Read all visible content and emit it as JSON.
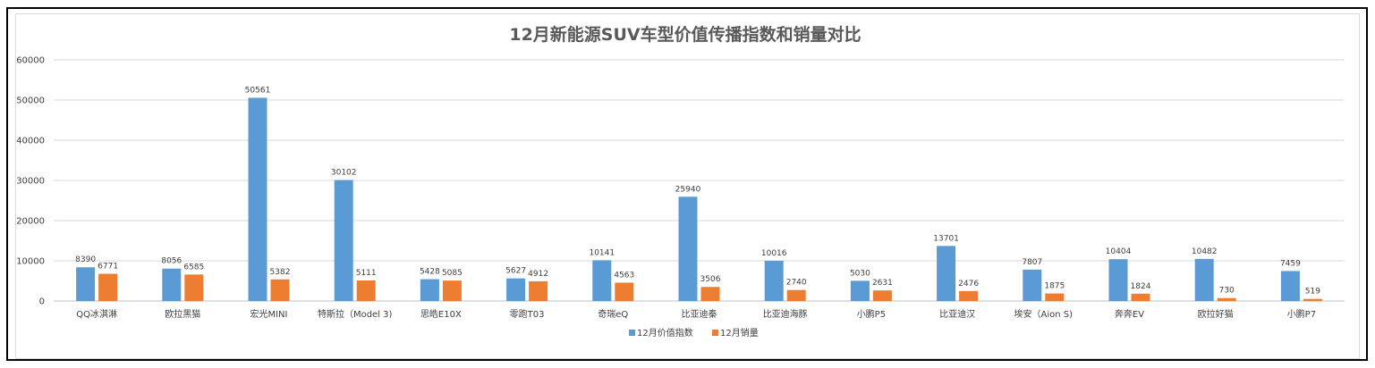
{
  "chart_data": {
    "type": "bar",
    "title": "12月新能源SUV车型价值传播指数和销量对比",
    "categories": [
      "QQ冰淇淋",
      "欧拉黑猫",
      "宏光MINI",
      "特斯拉（Model 3)",
      "思皓E10X",
      "零跑T03",
      "奇瑞eQ",
      "比亚迪秦",
      "比亚迪海豚",
      "小鹏P5",
      "比亚迪汉",
      "埃安（Aion S)",
      "奔奔EV",
      "欧拉好猫",
      "小鹏P7"
    ],
    "series": [
      {
        "name": "12月价值指数",
        "color": "#5b9bd5",
        "values": [
          8390,
          8056,
          50561,
          30102,
          5428,
          5627,
          10141,
          25940,
          10016,
          5030,
          13701,
          7807,
          10404,
          10482,
          7459
        ]
      },
      {
        "name": "12月销量",
        "color": "#ed7d31",
        "values": [
          6771,
          6585,
          5382,
          5111,
          5085,
          4912,
          4563,
          3506,
          2740,
          2631,
          2476,
          1875,
          1824,
          730,
          519
        ]
      }
    ],
    "ylim": [
      0,
      60000
    ],
    "yticks": [
      0,
      10000,
      20000,
      30000,
      40000,
      50000,
      60000
    ],
    "xlabel": "",
    "ylabel": "",
    "grid": true,
    "legend": "bottom"
  }
}
